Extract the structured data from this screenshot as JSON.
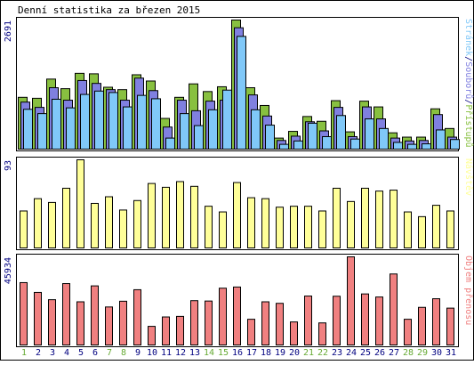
{
  "colors": {
    "hits": "#88c040",
    "files": "#8080e0",
    "pages": "#80c8f8",
    "visits": "#ffff99",
    "kbytes": "#f08080",
    "weekend": "#66aa33",
    "weekday": "#000080",
    "frame": "#000000",
    "bg": "#ffffff"
  },
  "chart_data": {
    "type": "bar",
    "title": "Denní statistika za březen 2015",
    "categories": [
      "1",
      "2",
      "3",
      "4",
      "5",
      "6",
      "7",
      "8",
      "9",
      "10",
      "11",
      "12",
      "13",
      "14",
      "15",
      "16",
      "17",
      "18",
      "19",
      "20",
      "21",
      "22",
      "23",
      "24",
      "25",
      "26",
      "27",
      "28",
      "29",
      "30",
      "31"
    ],
    "weekend_days": [
      "1",
      "7",
      "8",
      "14",
      "15",
      "21",
      "22",
      "28",
      "29"
    ],
    "panels": [
      {
        "key": "top",
        "ymax_label": "2691",
        "ylim": [
          0,
          2691
        ],
        "legend": [
          {
            "label": "Stránek",
            "color": "#80c8f8"
          },
          {
            "label": "Souborů",
            "color": "#8080e0"
          },
          {
            "label": "Přístupů",
            "color": "#88c040"
          }
        ],
        "series": [
          {
            "name": "Přístupů",
            "values": [
              1080,
              1060,
              1460,
              1260,
              1580,
              1570,
              1290,
              1240,
              1550,
              1420,
              640,
              1080,
              1360,
              1200,
              1300,
              2691,
              1280,
              910,
              230,
              370,
              680,
              580,
              1010,
              360,
              1000,
              880,
              340,
              250,
              250,
              840,
              430
            ]
          },
          {
            "name": "Souborů",
            "values": [
              980,
              870,
              1280,
              1020,
              1430,
              1370,
              1240,
              1020,
              1480,
              1220,
              460,
              1020,
              800,
              1000,
              1020,
              2530,
              1130,
              690,
              180,
              270,
              570,
              380,
              870,
              260,
              880,
              630,
              230,
              170,
              180,
              720,
              250
            ]
          },
          {
            "name": "Stránek",
            "values": [
              830,
              740,
              1040,
              860,
              1140,
              1210,
              1180,
              880,
              1120,
              1050,
              230,
              740,
              490,
              820,
              1230,
              2350,
              820,
              500,
              100,
              170,
              540,
              260,
              700,
              210,
              630,
              430,
              140,
              100,
              110,
              400,
              200
            ]
          }
        ]
      },
      {
        "key": "middle",
        "ymax_label": "93",
        "ylim": [
          0,
          93
        ],
        "legend": [
          {
            "label": "Návštěv",
            "color": "#ffff99"
          }
        ],
        "series": [
          {
            "name": "Návštěv",
            "values": [
              39,
              52,
              48,
              63,
              93,
              47,
              54,
              40,
              50,
              68,
              64,
              70,
              65,
              44,
              38,
              69,
              53,
              52,
              43,
              44,
              44,
              39,
              63,
              49,
              63,
              60,
              61,
              38,
              33,
              45,
              39
            ]
          }
        ]
      },
      {
        "key": "bottom",
        "ymax_label": "45934",
        "ylim": [
          0,
          45934
        ],
        "legend": [
          {
            "label": "Objem přenosu",
            "color": "#f08080"
          }
        ],
        "series": [
          {
            "name": "Objem přenosu",
            "values": [
              32500,
              27400,
              23600,
              32000,
              22500,
              30800,
              19800,
              22800,
              28800,
              9700,
              14600,
              14900,
              23100,
              22900,
              29600,
              30200,
              13400,
              22500,
              21700,
              12000,
              25500,
              11500,
              25400,
              45934,
              26600,
              25000,
              37000,
              13400,
              19600,
              24100,
              19200
            ]
          }
        ]
      }
    ]
  }
}
